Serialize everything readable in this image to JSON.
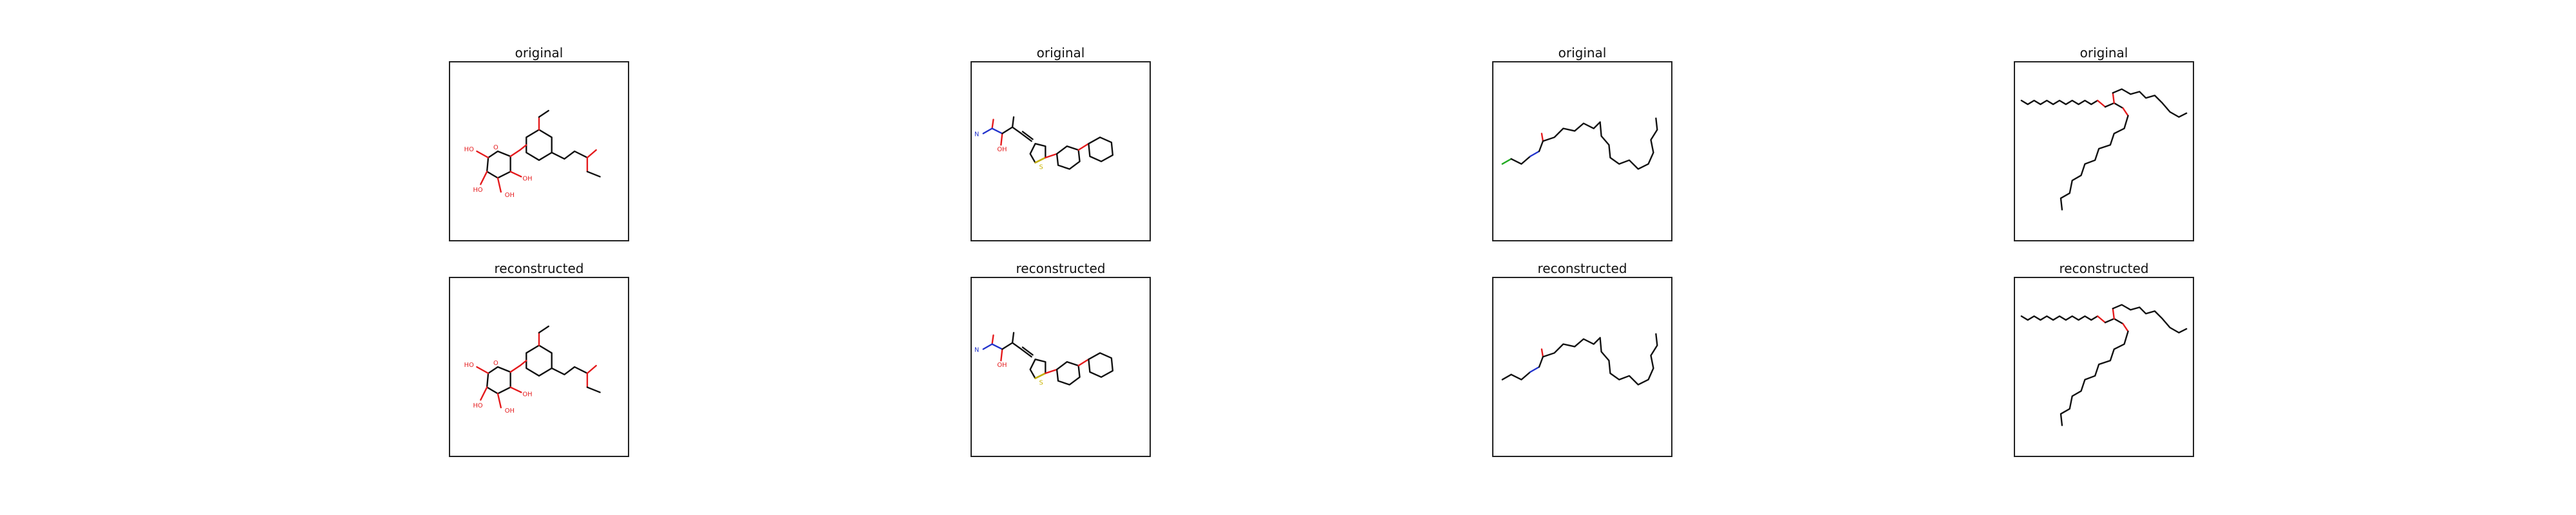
{
  "columns": [
    {
      "top_title": "original",
      "bottom_title": "reconstructed",
      "molecule": "aryl-glycoside-ester"
    },
    {
      "top_title": "original",
      "bottom_title": "reconstructed",
      "molecule": "thiazole-hydroxyurea"
    },
    {
      "top_title": "original",
      "bottom_title": "reconstructed",
      "molecule": "polyunsaturated-amide"
    },
    {
      "top_title": "original",
      "bottom_title": "reconstructed",
      "molecule": "triglyceride"
    }
  ],
  "atom_labels": {
    "hydroxyl": "HO",
    "hydroxyl_right": "OH",
    "oxygen": "O",
    "nitrogen": "N",
    "sulfur": "S",
    "chlorine": "Cl"
  },
  "colors": {
    "carbon": "#111111",
    "oxygen": "#e41a1c",
    "nitrogen": "#2233cc",
    "chlorine": "#22aa22",
    "sulfur": "#c9b400"
  }
}
